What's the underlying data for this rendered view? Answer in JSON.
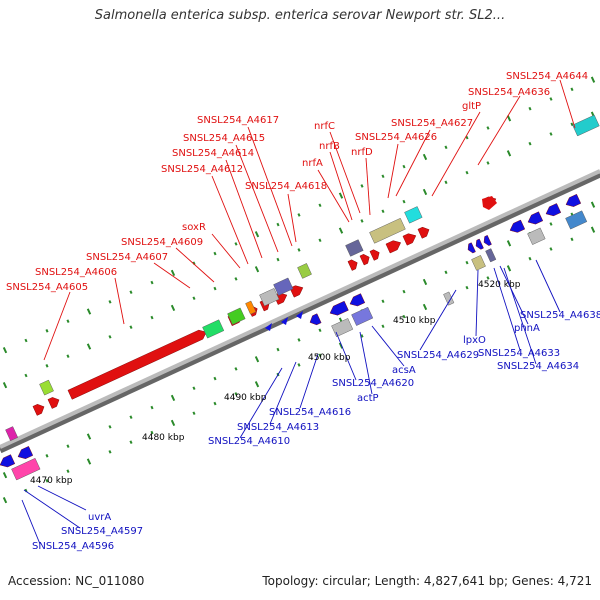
{
  "title": "Salmonella enterica subsp. enterica serovar Newport str. SL2...",
  "footer": {
    "accession": "Accession: NC_011080",
    "summary": "Topology: circular; Length: 4,827,641 bp; Genes: 4,721"
  },
  "colors": {
    "forward": "#e01010",
    "reverse": "#1010e0",
    "backbone": "#999999"
  },
  "scale_labels": [
    "4470 kbp",
    "4480 kbp",
    "4490 kbp",
    "4500 kbp",
    "4510 kbp",
    "4520 kbp"
  ],
  "forward_genes": [
    "SNSL254_A4644",
    "SNSL254_A4636",
    "gltP",
    "SNSL254_A4627",
    "SNSL254_A4626",
    "nrfC",
    "nrfB",
    "nrfD",
    "nrfA",
    "SNSL254_A4618",
    "SNSL254_A4617",
    "SNSL254_A4615",
    "SNSL254_A4614",
    "SNSL254_A4612",
    "soxR",
    "SNSL254_A4609",
    "SNSL254_A4607",
    "SNSL254_A4606",
    "SNSL254_A4605"
  ],
  "reverse_genes": [
    "SNSL254_A4638",
    "phnA",
    "SNSL254_A4633",
    "SNSL254_A4634",
    "lpxO",
    "SNSL254_A4629",
    "acsA",
    "SNSL254_A4620",
    "actP",
    "SNSL254_A4616",
    "SNSL254_A4613",
    "SNSL254_A4610",
    "uvrA",
    "SNSL254_A4597",
    "SNSL254_A4596"
  ]
}
